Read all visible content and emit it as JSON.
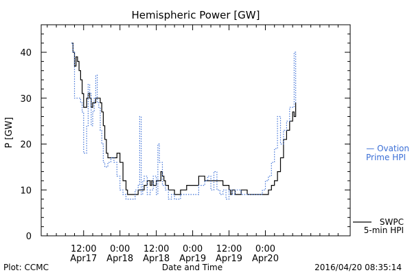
{
  "chart_data": {
    "type": "line",
    "title": "Hemispheric Power [GW]",
    "ylabel": "P [GW]",
    "xlabel": "Date and Time",
    "ylim": [
      0,
      46
    ],
    "x_unit": "hours",
    "xlim": [
      -2,
      100
    ],
    "y_ticks": [
      "0",
      "10",
      "20",
      "30",
      "40"
    ],
    "x_ticks": [
      {
        "time": "12:00",
        "date": "Apr17",
        "x": 12
      },
      {
        "time": "0:00",
        "date": "Apr18",
        "x": 24
      },
      {
        "time": "12:00",
        "date": "Apr18",
        "x": 36
      },
      {
        "time": "0:00",
        "date": "Apr19",
        "x": 48
      },
      {
        "time": "12:00",
        "date": "Apr19",
        "x": 60
      },
      {
        "time": "0:00",
        "date": "Apr20",
        "x": 72
      }
    ],
    "series": [
      {
        "name": "SWPC 5-min HPI",
        "style": "solid",
        "color": "#000000",
        "x": [
          8,
          8.5,
          9,
          9.5,
          10,
          10.5,
          11,
          11.5,
          12,
          13,
          13.5,
          14,
          14.5,
          15,
          16,
          16.5,
          17,
          17.5,
          18,
          18.5,
          19,
          19.5,
          20,
          21,
          22,
          23,
          24,
          25,
          26,
          26.5,
          27,
          28,
          29,
          30,
          32,
          33,
          34,
          34.5,
          35,
          35.5,
          36,
          37,
          37.5,
          38,
          38.5,
          39,
          40,
          41,
          42,
          44,
          46,
          48,
          50,
          52,
          54,
          55,
          56,
          58,
          60,
          60.5,
          61,
          62,
          64,
          66,
          68,
          70,
          71,
          72,
          73,
          74,
          75,
          76,
          77,
          78,
          79,
          80,
          81,
          81.5,
          82
        ],
        "y": [
          42,
          40,
          37,
          39,
          38,
          36,
          34,
          31,
          28,
          30,
          31,
          30,
          28,
          29,
          30,
          30,
          30,
          29,
          27,
          24,
          21,
          18,
          17,
          17,
          17,
          18,
          16,
          12,
          10,
          9,
          9,
          9,
          9,
          10,
          11,
          12,
          11,
          12,
          11,
          11,
          12,
          12,
          14,
          13,
          12,
          11,
          10,
          10,
          9,
          10,
          11,
          11,
          13,
          12,
          12,
          12,
          12,
          11,
          10,
          9,
          10,
          9,
          10,
          9,
          9,
          9,
          9,
          9,
          10,
          11,
          12,
          14,
          17,
          21,
          23,
          25,
          27,
          26,
          29
        ]
      },
      {
        "name": "Ovation Prime HPI",
        "style": "dotted",
        "color": "#3b6fd6",
        "x": [
          8,
          8.5,
          9,
          10,
          11,
          11.5,
          12,
          13,
          13.5,
          14,
          14.5,
          15,
          15.5,
          16,
          16.5,
          17,
          17.5,
          18,
          18.5,
          19,
          20,
          21,
          22,
          23,
          24,
          25,
          26,
          28,
          29,
          30,
          30.5,
          31,
          31.5,
          32,
          33,
          34,
          35,
          36,
          36.5,
          37,
          38,
          39,
          40,
          41,
          42,
          44,
          46,
          48,
          50,
          52,
          53,
          54,
          55,
          56,
          57,
          58,
          59,
          60,
          61,
          62,
          64,
          66,
          68,
          70,
          71,
          72,
          73,
          74,
          75,
          76,
          77,
          78,
          79,
          80,
          81,
          81.5,
          82
        ],
        "y": [
          42,
          40,
          30,
          30,
          29,
          27,
          18,
          24,
          33,
          31,
          24,
          27,
          30,
          35,
          29,
          28,
          23,
          20,
          16,
          15,
          16,
          17,
          16,
          13,
          10,
          9,
          8,
          8,
          10,
          11,
          26,
          9,
          12,
          13,
          9,
          10,
          13,
          9,
          20,
          16,
          11,
          10,
          8,
          9,
          8,
          9,
          9,
          9,
          11,
          12,
          13,
          10,
          14,
          10,
          9,
          10,
          8,
          10,
          9,
          10,
          9,
          9,
          9,
          9,
          10,
          12,
          13,
          16,
          19,
          26,
          20,
          23,
          25,
          28,
          28,
          40,
          29
        ]
      }
    ],
    "legend": [
      {
        "symbol": "— ",
        "line1": "Ovation",
        "line2": "Prime HPI",
        "color": "#3b6fd6"
      },
      {
        "symbol": "",
        "line1": "SWPC",
        "line2": "5-min HPI",
        "color": "#000000"
      }
    ],
    "legend_placement": "right",
    "grid": false
  },
  "footer": {
    "plot_credit": "Plot: CCMC",
    "timestamp": "2016/04/20 08:35:14"
  }
}
